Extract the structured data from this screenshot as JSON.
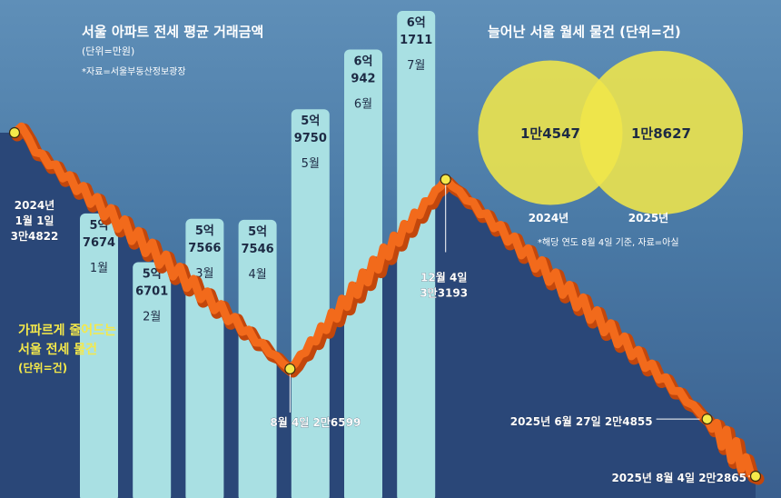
{
  "left_panel": {
    "title": "서울 아파트 전세 평균 거래금액",
    "unit": "(단위=만원)",
    "source": "*자료=서울부동산정보광장"
  },
  "right_panel": {
    "title": "늘어난 서울 월세 물건 (단위=건)",
    "note": "*해당 연도 8월 4일 기준, 자료=아실"
  },
  "line_label": {
    "line1": "가파르게 줄어드는",
    "line2": "서울 전세 물건",
    "line3": "(단위=건)"
  },
  "chart_data": [
    {
      "type": "bar",
      "title": "서울 아파트 전세 평균 거래금액",
      "unit": "만원",
      "categories": [
        "1월",
        "2월",
        "3월",
        "4월",
        "5월",
        "6월",
        "7월"
      ],
      "value_labels": [
        [
          "5억",
          "7674"
        ],
        [
          "5억",
          "6701"
        ],
        [
          "5억",
          "7566"
        ],
        [
          "5억",
          "7546"
        ],
        [
          "5억",
          "9750"
        ],
        [
          "6억",
          "942"
        ],
        [
          "6억",
          "1711"
        ]
      ],
      "values": [
        57674,
        56701,
        57566,
        57546,
        59750,
        60942,
        61711
      ],
      "color": "#a9e0e3"
    },
    {
      "type": "line",
      "title": "",
      "unit": "건",
      "color": "#f26a1b",
      "points": [
        {
          "x": "2024-01-01",
          "y": 34822
        },
        {
          "x": "2024-08-04",
          "y": 26599
        },
        {
          "x": "2024-12-04",
          "y": 33193
        },
        {
          "x": "2025-06-27",
          "y": 24855
        },
        {
          "x": "2025-08-04",
          "y": 22865
        }
      ],
      "annotations": [
        {
          "lines": [
            "2024년",
            "1월 1일",
            "3만4822"
          ]
        },
        {
          "lines": [
            "8월 4일 2만6599"
          ]
        },
        {
          "lines": [
            "12월 4일",
            "3만3193"
          ]
        },
        {
          "lines": [
            "2025년 6월 27일 2만4855"
          ]
        },
        {
          "lines": [
            "2025년 8월 4일 2만2865"
          ]
        }
      ]
    },
    {
      "type": "bubble",
      "title": "늘어난 서울 월세 물건",
      "unit": "건",
      "categories": [
        "2024년",
        "2025년"
      ],
      "values": [
        14547,
        18627
      ],
      "labels": [
        "1만4547",
        "1만8627"
      ],
      "color": "#f0e64a"
    }
  ]
}
